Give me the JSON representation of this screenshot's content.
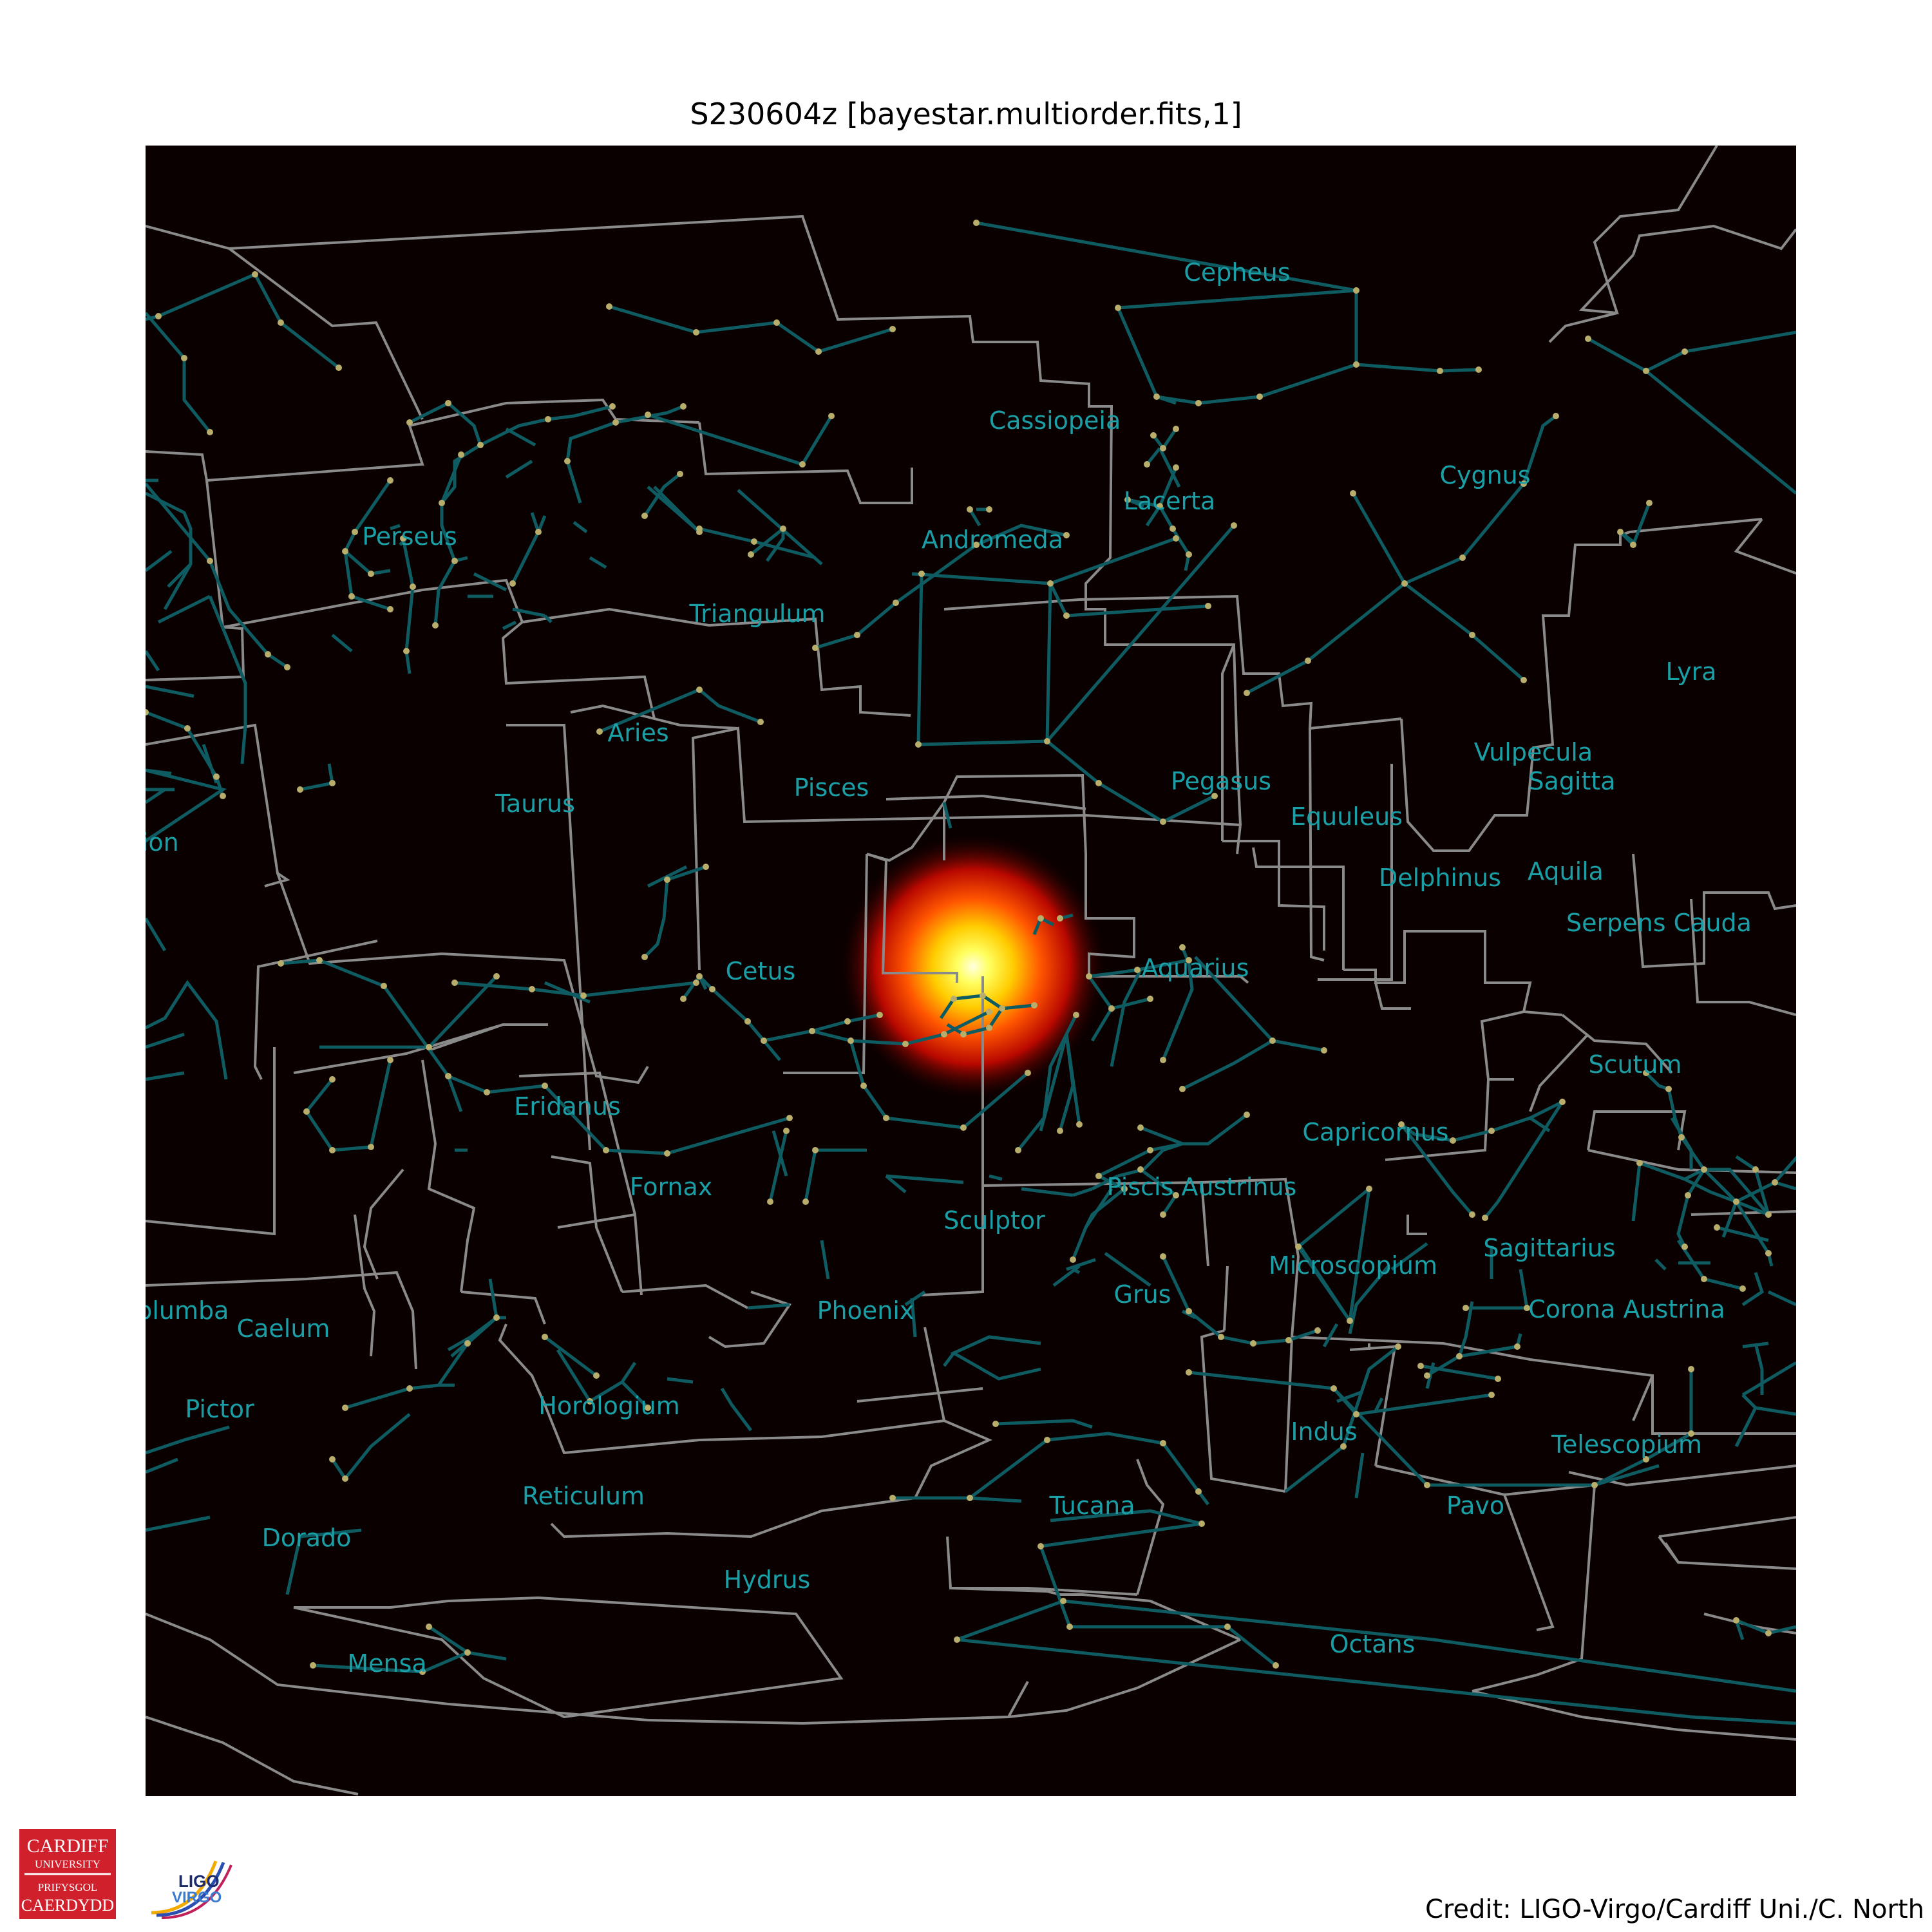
{
  "title": "S230604z [bayestar.multiorder.fits,1]",
  "credit": "Credit: LIGO-Virgo/Cardiff Uni./C. North",
  "colors": {
    "sky_background": "#0a0000",
    "constellation_lines": "#0e5c62",
    "constellation_labels": "#1a9fa6",
    "boundaries": "#8a8a8a",
    "stars": "#b8ad6a",
    "hotspot_core": "#ffffd0",
    "hotspot_mid": "#ffee00",
    "hotspot_outer": "#dd1100",
    "cardiff_red": "#d0202c"
  },
  "logos": {
    "cardiff": [
      "CARDIFF",
      "UNIVERSITY",
      "PRIFYSGOL",
      "CAERDYDD"
    ],
    "ligo_virgo": [
      "LIGO",
      "VIRGO"
    ]
  },
  "constellations": [
    "Cepheus",
    "Cassiopeia",
    "Lacerta",
    "Cygnus",
    "Andromeda",
    "Perseus",
    "Triangulum",
    "Lyra",
    "Aries",
    "Pisces",
    "Pegasus",
    "Vulpecula",
    "Sagitta",
    "Taurus",
    "Equuleus",
    "Orion",
    "Delphinus",
    "Aquila",
    "Serpens Cauda",
    "Cetus",
    "Aquarius",
    "Scutum",
    "Eridanus",
    "Capricornus",
    "Fornax",
    "Piscis Austrinus",
    "Sculptor",
    "Sagittarius",
    "Microscopium",
    "Grus",
    "Columba",
    "Phoenix",
    "Corona Austrina",
    "Caelum",
    "Pictor",
    "Horologium",
    "Indus",
    "Telescopium",
    "Reticulum",
    "Tucana",
    "Pavo",
    "Dorado",
    "Hydrus",
    "Octans",
    "Mensa"
  ]
}
